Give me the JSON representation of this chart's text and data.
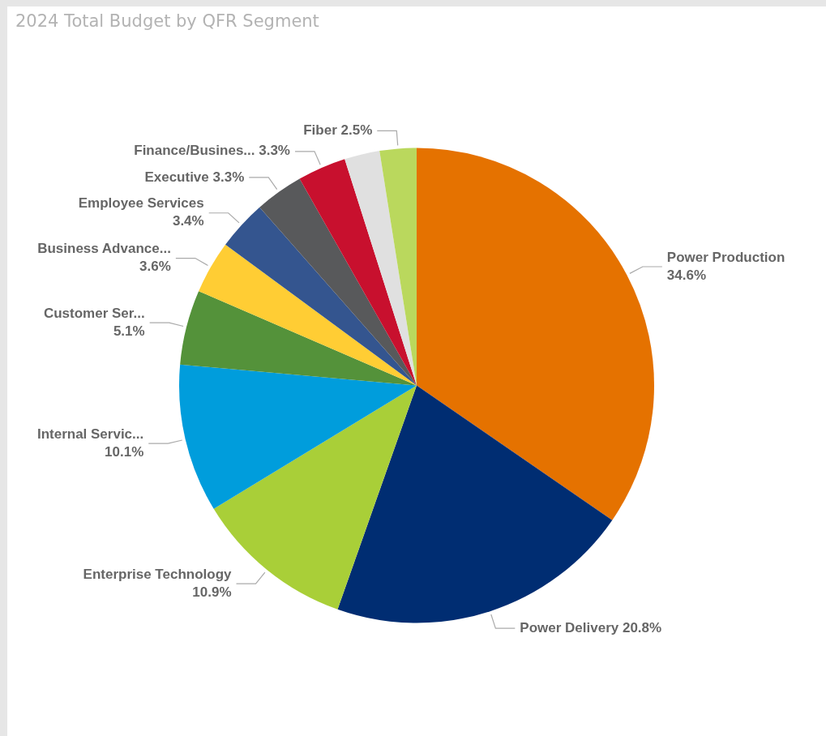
{
  "chart_data": {
    "type": "pie",
    "title": "2024 Total Budget by QFR Segment",
    "categories": [
      "Power Production",
      "Power Delivery",
      "Enterprise Technology",
      "Internal Servic...",
      "Customer Ser...",
      "Business Advance...",
      "Employee Services",
      "Executive",
      "Finance/Busines...",
      null,
      "Fiber"
    ],
    "values": [
      34.6,
      20.8,
      10.9,
      10.1,
      5.1,
      3.6,
      3.4,
      3.3,
      3.3,
      2.4,
      2.5
    ],
    "value_labels": [
      "34.6%",
      "20.8%",
      "10.9%",
      "10.1%",
      "5.1%",
      "3.6%",
      "3.4%",
      "3.3%",
      "3.3%",
      null,
      "2.5%"
    ],
    "colors": [
      "#e57200",
      "#002d72",
      "#a9cf38",
      "#009ddc",
      "#54923a",
      "#ffcd34",
      "#34558f",
      "#58595b",
      "#c8102e",
      "#e0e0e0",
      "#bad85d"
    ],
    "legend": false
  }
}
